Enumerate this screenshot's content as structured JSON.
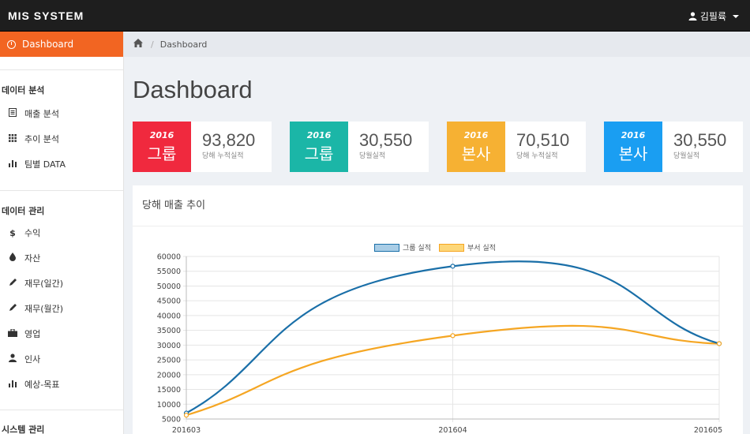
{
  "navbar": {
    "brand": "MIS SYSTEM",
    "user": "김필륙"
  },
  "sidebar": {
    "active": "Dashboard",
    "sections": [
      {
        "title": "데이터 분석",
        "items": [
          "매출 분석",
          "추이 분석",
          "팀별 DATA"
        ],
        "icons": [
          "document-icon",
          "grid-icon",
          "bar-chart-icon"
        ]
      },
      {
        "title": "데이터 관리",
        "items": [
          "수익",
          "자산",
          "재무(일간)",
          "재무(월간)",
          "영업",
          "인사",
          "예상-목표"
        ],
        "icons": [
          "dollar-icon",
          "drop-icon",
          "pencil-icon",
          "pencil-icon",
          "briefcase-icon",
          "user-icon",
          "bar-chart-icon"
        ]
      },
      {
        "title": "시스템 관리",
        "items": [],
        "icons": []
      }
    ]
  },
  "breadcrumb": {
    "current": "Dashboard"
  },
  "page": {
    "title": "Dashboard"
  },
  "cards": [
    {
      "year": "2016",
      "name": "그룹",
      "value": "93,820",
      "label": "당해 누적실적",
      "color": "#f0293e"
    },
    {
      "year": "2016",
      "name": "그룹",
      "value": "30,550",
      "label": "당월실적",
      "color": "#1bb6a7"
    },
    {
      "year": "2016",
      "name": "본사",
      "value": "70,510",
      "label": "당해 누적실적",
      "color": "#f6b133"
    },
    {
      "year": "2016",
      "name": "본사",
      "value": "30,550",
      "label": "당월실적",
      "color": "#1a9ef2"
    }
  ],
  "chart_panel": {
    "title": "당해 매출 추이"
  },
  "chart_data": {
    "type": "line",
    "x": [
      "201603",
      "201604",
      "201605"
    ],
    "series": [
      {
        "name": "그룹 실적",
        "values": [
          7000,
          56700,
          30500
        ],
        "color": "#1a6fa8",
        "fill": "#a9cde6"
      },
      {
        "name": "부서 실적",
        "values": [
          6300,
          33200,
          30500
        ],
        "color": "#f5a623",
        "fill": "#fdd779"
      }
    ],
    "ylim": [
      5000,
      60000
    ],
    "yticks": [
      60000,
      55000,
      50000,
      45000,
      40000,
      35000,
      30000,
      25000,
      20000,
      15000,
      10000,
      5000
    ],
    "legend": "top-center",
    "grid": true
  }
}
